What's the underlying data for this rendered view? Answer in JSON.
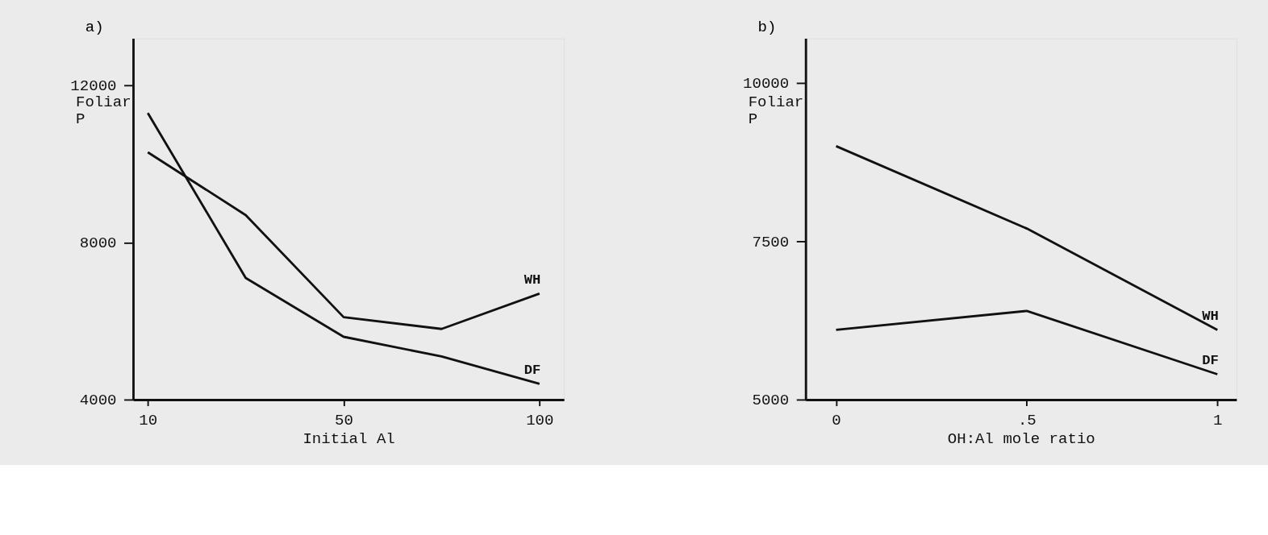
{
  "chart_data": [
    {
      "type": "line",
      "title": "a)",
      "xlabel": "Initial Al",
      "ylabel": "Foliar P",
      "categories": [
        "10",
        null,
        "50",
        null,
        "100"
      ],
      "ylim": [
        4000,
        13200
      ],
      "yticks": [
        4000,
        8000,
        12000
      ],
      "series": [
        {
          "name": "WH",
          "color": "#111111",
          "values": [
            10300,
            8700,
            6100,
            5800,
            6700
          ]
        },
        {
          "name": "DF",
          "color": "#111111",
          "values": [
            11300,
            7100,
            5600,
            5100,
            4400
          ]
        }
      ],
      "legend": false,
      "grid": false,
      "marker": "none",
      "line_style": "solid"
    },
    {
      "type": "line",
      "title": "b)",
      "xlabel": "OH:Al mole ratio",
      "ylabel": "Foliar P",
      "x": [
        0,
        0.5,
        1
      ],
      "xlim": [
        -0.08,
        1.05
      ],
      "xticks": [
        0,
        {
          "value": 0.5,
          "label": ".5"
        },
        1
      ],
      "ylim": [
        5000,
        10700
      ],
      "yticks": [
        5000,
        7500,
        10000
      ],
      "series": [
        {
          "name": "WH",
          "color": "#111111",
          "values": [
            9000,
            7700,
            6100
          ]
        },
        {
          "name": "DF",
          "color": "#111111",
          "values": [
            6100,
            6400,
            5400
          ]
        }
      ],
      "legend": false,
      "grid": false,
      "marker": "none",
      "line_style": "solid"
    }
  ]
}
